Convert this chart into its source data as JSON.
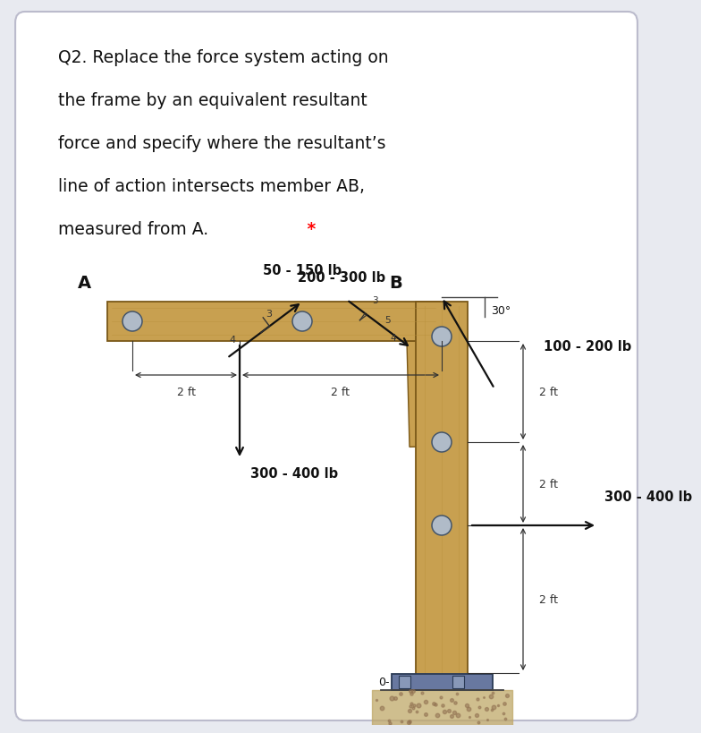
{
  "bg_color": "#e8eaf0",
  "card_color": "#ffffff",
  "wood_color": "#c8a050",
  "wood_dark": "#9a7028",
  "wood_edge": "#7a5818",
  "title_lines": [
    "Q2. Replace the force system acting on",
    "the frame by an equivalent resultant",
    "force and specify where the resultant’s",
    "line of action intersects member AB,",
    "measured from A."
  ],
  "label_A": "A",
  "label_B": "B",
  "label_O": "0-",
  "force1_label": "50 - 150 lb",
  "force2_label": "100 - 200 lb",
  "force3_label": "200 - 300 lb",
  "force4_label": "300 - 400 lb",
  "force5_label": "300 - 400 lb",
  "dim_labels": [
    "2 ft",
    "2 ft",
    "2 ft",
    "2 ft",
    "2 ft"
  ],
  "angle_label": "30°"
}
